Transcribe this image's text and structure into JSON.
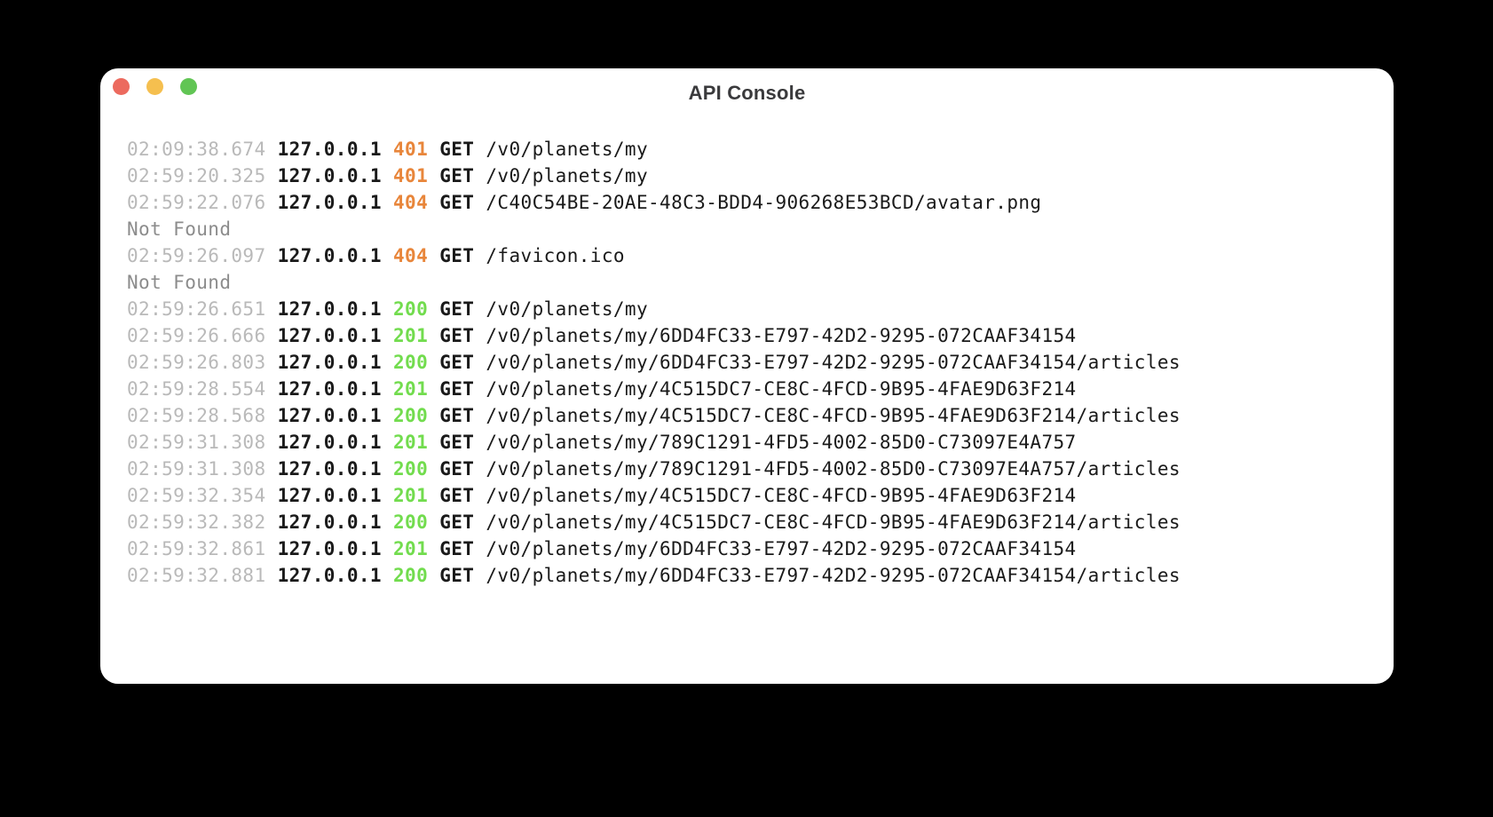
{
  "window": {
    "title": "API Console",
    "controls": [
      {
        "name": "close",
        "color": "#EC6A5E"
      },
      {
        "name": "minimize",
        "color": "#F5BF4F"
      },
      {
        "name": "zoom",
        "color": "#61C554"
      }
    ]
  },
  "colors": {
    "desktop_bg": "#000000",
    "window_bg": "#FFFFFF",
    "title_text": "#3A3A3C",
    "body_text": "#1A1A1A",
    "timestamp_text": "#B9B9B9",
    "message_text": "#8C8C8C",
    "status_success": "#72DC4E",
    "status_error": "#E8863B"
  },
  "log": {
    "entries": [
      {
        "type": "request",
        "timestamp": "02:09:38.674",
        "ip": "127.0.0.1",
        "status": "401",
        "status_kind": "error",
        "method": "GET",
        "path": "/v0/planets/my"
      },
      {
        "type": "request",
        "timestamp": "02:59:20.325",
        "ip": "127.0.0.1",
        "status": "401",
        "status_kind": "error",
        "method": "GET",
        "path": "/v0/planets/my"
      },
      {
        "type": "request",
        "timestamp": "02:59:22.076",
        "ip": "127.0.0.1",
        "status": "404",
        "status_kind": "error",
        "method": "GET",
        "path": "/C40C54BE-20AE-48C3-BDD4-906268E53BCD/avatar.png"
      },
      {
        "type": "message",
        "text": "Not Found"
      },
      {
        "type": "request",
        "timestamp": "02:59:26.097",
        "ip": "127.0.0.1",
        "status": "404",
        "status_kind": "error",
        "method": "GET",
        "path": "/favicon.ico"
      },
      {
        "type": "message",
        "text": "Not Found"
      },
      {
        "type": "request",
        "timestamp": "02:59:26.651",
        "ip": "127.0.0.1",
        "status": "200",
        "status_kind": "success",
        "method": "GET",
        "path": "/v0/planets/my"
      },
      {
        "type": "request",
        "timestamp": "02:59:26.666",
        "ip": "127.0.0.1",
        "status": "201",
        "status_kind": "success",
        "method": "GET",
        "path": "/v0/planets/my/6DD4FC33-E797-42D2-9295-072CAAF34154"
      },
      {
        "type": "request",
        "timestamp": "02:59:26.803",
        "ip": "127.0.0.1",
        "status": "200",
        "status_kind": "success",
        "method": "GET",
        "path": "/v0/planets/my/6DD4FC33-E797-42D2-9295-072CAAF34154/articles"
      },
      {
        "type": "request",
        "timestamp": "02:59:28.554",
        "ip": "127.0.0.1",
        "status": "201",
        "status_kind": "success",
        "method": "GET",
        "path": "/v0/planets/my/4C515DC7-CE8C-4FCD-9B95-4FAE9D63F214"
      },
      {
        "type": "request",
        "timestamp": "02:59:28.568",
        "ip": "127.0.0.1",
        "status": "200",
        "status_kind": "success",
        "method": "GET",
        "path": "/v0/planets/my/4C515DC7-CE8C-4FCD-9B95-4FAE9D63F214/articles"
      },
      {
        "type": "request",
        "timestamp": "02:59:31.308",
        "ip": "127.0.0.1",
        "status": "201",
        "status_kind": "success",
        "method": "GET",
        "path": "/v0/planets/my/789C1291-4FD5-4002-85D0-C73097E4A757"
      },
      {
        "type": "request",
        "timestamp": "02:59:31.308",
        "ip": "127.0.0.1",
        "status": "200",
        "status_kind": "success",
        "method": "GET",
        "path": "/v0/planets/my/789C1291-4FD5-4002-85D0-C73097E4A757/articles"
      },
      {
        "type": "request",
        "timestamp": "02:59:32.354",
        "ip": "127.0.0.1",
        "status": "201",
        "status_kind": "success",
        "method": "GET",
        "path": "/v0/planets/my/4C515DC7-CE8C-4FCD-9B95-4FAE9D63F214"
      },
      {
        "type": "request",
        "timestamp": "02:59:32.382",
        "ip": "127.0.0.1",
        "status": "200",
        "status_kind": "success",
        "method": "GET",
        "path": "/v0/planets/my/4C515DC7-CE8C-4FCD-9B95-4FAE9D63F214/articles"
      },
      {
        "type": "request",
        "timestamp": "02:59:32.861",
        "ip": "127.0.0.1",
        "status": "201",
        "status_kind": "success",
        "method": "GET",
        "path": "/v0/planets/my/6DD4FC33-E797-42D2-9295-072CAAF34154"
      },
      {
        "type": "request",
        "timestamp": "02:59:32.881",
        "ip": "127.0.0.1",
        "status": "200",
        "status_kind": "success",
        "method": "GET",
        "path": "/v0/planets/my/6DD4FC33-E797-42D2-9295-072CAAF34154/articles"
      }
    ]
  }
}
